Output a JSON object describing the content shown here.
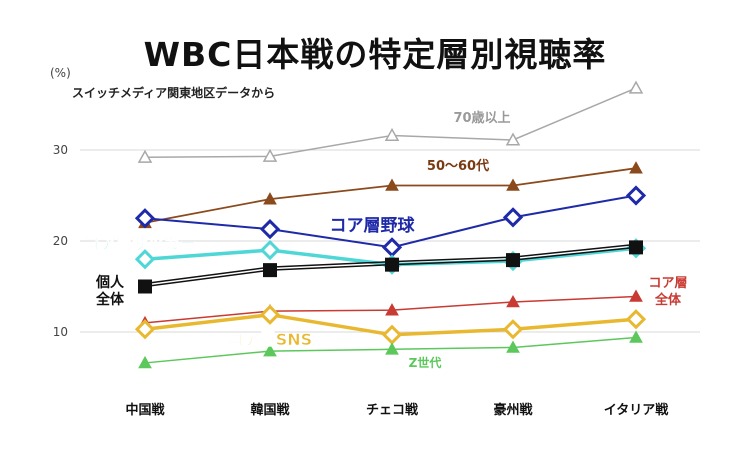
{
  "chart_data": {
    "type": "line",
    "title": "WBC日本戦の特定層別視聴率",
    "subtitle": "スイッチメディア関東地区データから",
    "unit": "(%)",
    "categories": [
      "中国戦",
      "韓国戦",
      "チェコ戦",
      "豪州戦",
      "イタリア戦"
    ],
    "yticks": [
      10,
      20,
      30
    ],
    "ylim": [
      2,
      40
    ],
    "grid": true,
    "series": [
      {
        "name": "70歳以上",
        "color": "#a8a8a8",
        "marker": "triangle-open",
        "values": [
          29.2,
          29.3,
          31.6,
          31.1,
          36.8
        ]
      },
      {
        "name": "50～60代",
        "color": "#8b4a1c",
        "marker": "triangle",
        "values": [
          22.0,
          24.6,
          26.1,
          26.1,
          28.0
        ]
      },
      {
        "name": "コア層野球",
        "color": "#1e2aa8",
        "marker": "diamond-open",
        "values": [
          22.5,
          21.3,
          19.3,
          22.6,
          25.0
        ]
      },
      {
        "name": "コア層サッカー",
        "color": "#4fd6d6",
        "marker": "diamond-open",
        "values": [
          18.0,
          19.0,
          17.4,
          17.8,
          19.2
        ]
      },
      {
        "name": "個人全体",
        "color": "#111111",
        "marker": "square",
        "values": [
          15.0,
          16.8,
          17.4,
          17.9,
          19.3
        ]
      },
      {
        "name": "コア層全体",
        "color": "#c83a32",
        "marker": "triangle",
        "values": [
          11.0,
          12.3,
          12.4,
          13.3,
          13.9
        ]
      },
      {
        "name": "コア層SNS",
        "color": "#e8b830",
        "marker": "diamond-open",
        "values": [
          10.3,
          11.9,
          9.7,
          10.3,
          11.4
        ]
      },
      {
        "name": "Z世代",
        "color": "#5cc85c",
        "marker": "triangle",
        "values": [
          6.6,
          7.9,
          8.1,
          8.3,
          9.4
        ]
      }
    ],
    "labels": [
      {
        "text": "70歳以上"
      },
      {
        "text": "50～60代"
      },
      {
        "text": "コア層野球"
      },
      {
        "text": "コア層サッカー"
      },
      {
        "text": "個人"
      },
      {
        "text": "全体"
      },
      {
        "text": "コア層"
      },
      {
        "text": "全体"
      },
      {
        "text": "コア層SNS"
      },
      {
        "text": "Z世代"
      }
    ]
  }
}
